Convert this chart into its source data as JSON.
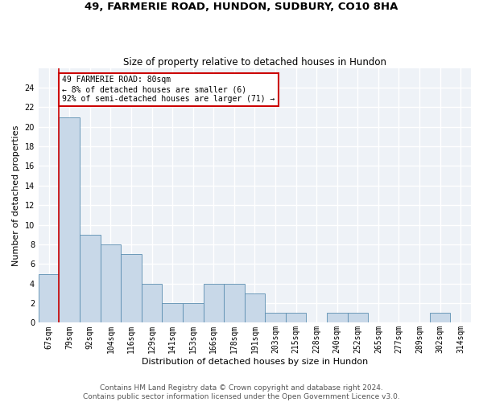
{
  "title1": "49, FARMERIE ROAD, HUNDON, SUDBURY, CO10 8HA",
  "title2": "Size of property relative to detached houses in Hundon",
  "xlabel": "Distribution of detached houses by size in Hundon",
  "ylabel": "Number of detached properties",
  "categories": [
    "67sqm",
    "79sqm",
    "92sqm",
    "104sqm",
    "116sqm",
    "129sqm",
    "141sqm",
    "153sqm",
    "166sqm",
    "178sqm",
    "191sqm",
    "203sqm",
    "215sqm",
    "228sqm",
    "240sqm",
    "252sqm",
    "265sqm",
    "277sqm",
    "289sqm",
    "302sqm",
    "314sqm"
  ],
  "values": [
    5,
    21,
    9,
    8,
    7,
    4,
    2,
    2,
    4,
    4,
    3,
    1,
    1,
    0,
    1,
    1,
    0,
    0,
    0,
    1,
    0
  ],
  "bar_color": "#c8d8e8",
  "bar_edge_color": "#5a8db0",
  "highlight_index": 1,
  "highlight_line_color": "#cc0000",
  "annotation_box_text": "49 FARMERIE ROAD: 80sqm\n← 8% of detached houses are smaller (6)\n92% of semi-detached houses are larger (71) →",
  "annotation_box_color": "#cc0000",
  "ylim": [
    0,
    26
  ],
  "ytick_step": 2,
  "footer1": "Contains HM Land Registry data © Crown copyright and database right 2024.",
  "footer2": "Contains public sector information licensed under the Open Government Licence v3.0.",
  "background_color": "#eef2f7",
  "grid_color": "#ffffff",
  "title1_fontsize": 9.5,
  "title2_fontsize": 8.5,
  "axis_label_fontsize": 8,
  "tick_fontsize": 7,
  "footer_fontsize": 6.5,
  "annotation_fontsize": 7
}
